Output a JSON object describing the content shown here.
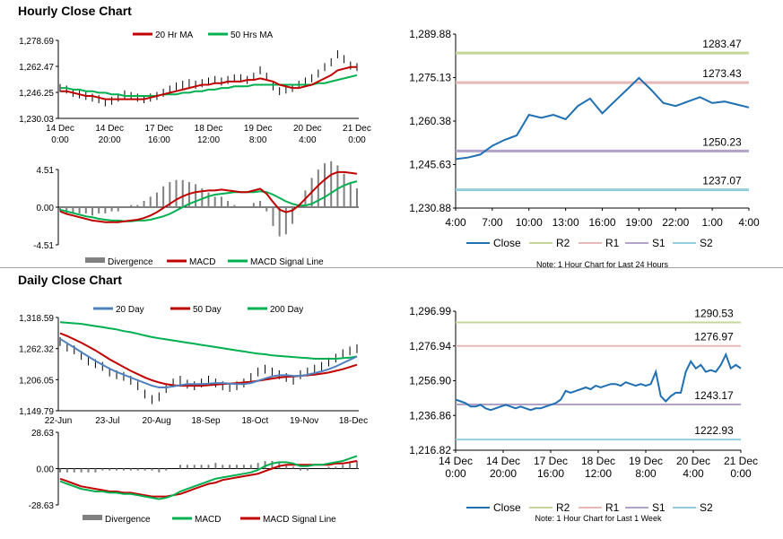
{
  "sections": {
    "hourly_title": "Hourly Close Chart",
    "daily_title": "Daily Close Chart"
  },
  "chart_data": [
    {
      "id": "hourly-price",
      "type": "line",
      "legend": [
        "20 Hr MA",
        "50 Hrs MA"
      ],
      "yticks": [
        "1,278.69",
        "1,262.47",
        "1,246.25",
        "1,230.03"
      ],
      "ylim": [
        1230.03,
        1278.69
      ],
      "xticks": [
        [
          "14 Dec",
          "0:00"
        ],
        [
          "14 Dec",
          "20:00"
        ],
        [
          "17 Dec",
          "16:00"
        ],
        [
          "18 Dec",
          "12:00"
        ],
        [
          "19 Dec",
          "8:00"
        ],
        [
          "20 Dec",
          "4:00"
        ],
        [
          "21 Dec",
          "0:00"
        ]
      ],
      "colors": {
        "ma20": "#c00000",
        "ma50": "#00b050",
        "price": "#000000"
      },
      "close": [
        1249,
        1248,
        1246,
        1245,
        1244,
        1243,
        1242,
        1240,
        1241,
        1243,
        1245,
        1244,
        1243,
        1242,
        1243,
        1244,
        1246,
        1248,
        1250,
        1251,
        1252,
        1251,
        1252,
        1253,
        1254,
        1253,
        1254,
        1255,
        1255,
        1254,
        1256,
        1260,
        1256,
        1250,
        1247,
        1248,
        1249,
        1251,
        1253,
        1255,
        1258,
        1262,
        1265,
        1270,
        1267,
        1263,
        1262
      ],
      "ma20": [
        1247,
        1247,
        1246,
        1245,
        1244,
        1244,
        1243,
        1242,
        1242,
        1242,
        1242,
        1242,
        1242,
        1242,
        1243,
        1244,
        1245,
        1246,
        1247,
        1248,
        1249,
        1250,
        1251,
        1251,
        1252,
        1252,
        1253,
        1253,
        1253,
        1254,
        1254,
        1255,
        1254,
        1253,
        1251,
        1250,
        1249,
        1249,
        1250,
        1251,
        1253,
        1255,
        1257,
        1260,
        1261,
        1262,
        1262
      ],
      "ma50": [
        1249,
        1249,
        1248,
        1248,
        1247,
        1247,
        1246,
        1246,
        1245,
        1245,
        1244,
        1244,
        1244,
        1244,
        1244,
        1244,
        1245,
        1245,
        1245,
        1246,
        1246,
        1247,
        1247,
        1248,
        1248,
        1249,
        1249,
        1250,
        1250,
        1250,
        1251,
        1251,
        1251,
        1251,
        1251,
        1251,
        1251,
        1251,
        1251,
        1251,
        1252,
        1252,
        1253,
        1254,
        1255,
        1256,
        1257
      ]
    },
    {
      "id": "hourly-macd",
      "type": "line",
      "legend": [
        "Divergence",
        "MACD",
        "MACD Signal Line"
      ],
      "yticks": [
        "4.51",
        "0.00",
        "-4.51"
      ],
      "ylim": [
        -4.51,
        4.51
      ],
      "colors": {
        "macd": "#c00000",
        "signal": "#00b050",
        "hist": "#808080"
      },
      "macd": [
        -0.5,
        -0.8,
        -1.0,
        -1.2,
        -1.4,
        -1.6,
        -1.7,
        -1.8,
        -1.8,
        -1.8,
        -1.7,
        -1.6,
        -1.5,
        -1.3,
        -1.0,
        -0.6,
        -0.1,
        0.4,
        0.9,
        1.3,
        1.6,
        1.8,
        1.9,
        2.0,
        2.0,
        2.1,
        2.0,
        1.9,
        1.8,
        1.8,
        2.0,
        2.2,
        1.6,
        0.6,
        -0.3,
        -0.6,
        -0.4,
        0.2,
        1.0,
        1.8,
        2.6,
        3.3,
        3.9,
        4.2,
        4.2,
        4.1,
        4.0
      ],
      "signal": [
        -0.3,
        -0.5,
        -0.7,
        -0.9,
        -1.1,
        -1.2,
        -1.4,
        -1.5,
        -1.6,
        -1.6,
        -1.7,
        -1.7,
        -1.6,
        -1.6,
        -1.5,
        -1.3,
        -1.1,
        -0.8,
        -0.4,
        0.0,
        0.4,
        0.7,
        1.0,
        1.3,
        1.5,
        1.6,
        1.7,
        1.8,
        1.8,
        1.8,
        1.8,
        1.9,
        1.8,
        1.5,
        1.1,
        0.7,
        0.4,
        0.2,
        0.2,
        0.4,
        0.8,
        1.2,
        1.7,
        2.2,
        2.6,
        2.9,
        3.1
      ]
    },
    {
      "id": "hourly-pivot",
      "type": "line",
      "legend": [
        "Close",
        "R2",
        "R1",
        "S1",
        "S2"
      ],
      "note": "Note: 1 Hour Chart for Last 24 Hours",
      "yticks": [
        "1,289.88",
        "1,275.13",
        "1,260.38",
        "1,245.63",
        "1,230.88"
      ],
      "ylim": [
        1230.88,
        1289.88
      ],
      "xticks": [
        "4:00",
        "7:00",
        "10:00",
        "13:00",
        "16:00",
        "19:00",
        "22:00",
        "1:00",
        "4:00"
      ],
      "levels": {
        "R2": 1283.47,
        "R1": 1273.43,
        "S1": 1250.23,
        "S2": 1237.07
      },
      "level_labels": {
        "R2": "1283.47",
        "R1": "1273.43",
        "S1": "1250.23",
        "S2": "1237.07"
      },
      "colors": {
        "close": "#1f6fb2",
        "R2": "#c4d79b",
        "R1": "#e6b9b8",
        "S1": "#b3a2c7",
        "S2": "#93cddd"
      },
      "close": [
        1247.5,
        1248.0,
        1249.0,
        1252.0,
        1254.0,
        1255.5,
        1262.5,
        1261.5,
        1262.5,
        1261.0,
        1265.5,
        1268.0,
        1263.0,
        1267.0,
        1271.0,
        1275.0,
        1271.0,
        1266.5,
        1265.5,
        1267.0,
        1268.5,
        1266.5,
        1267.0,
        1266.0,
        1265.0
      ]
    },
    {
      "id": "daily-price",
      "type": "line",
      "legend": [
        "20 Day",
        "50 Day",
        "200 Day"
      ],
      "yticks": [
        "1,318.59",
        "1,262.32",
        "1,206.05",
        "1,149.79"
      ],
      "ylim": [
        1149.79,
        1318.59
      ],
      "xticks": [
        "22-Jun",
        "23-Jul",
        "20-Aug",
        "18-Sep",
        "18-Oct",
        "19-Nov",
        "18-Dec"
      ],
      "colors": {
        "ma20": "#4f81bd",
        "ma50": "#c00000",
        "ma200": "#00b050",
        "price": "#000000"
      },
      "close": [
        1275,
        1265,
        1260,
        1250,
        1240,
        1235,
        1230,
        1220,
        1215,
        1212,
        1205,
        1195,
        1180,
        1170,
        1175,
        1190,
        1200,
        1205,
        1198,
        1195,
        1200,
        1205,
        1200,
        1195,
        1192,
        1195,
        1200,
        1210,
        1220,
        1225,
        1220,
        1215,
        1210,
        1205,
        1215,
        1220,
        1225,
        1230,
        1238,
        1245,
        1253,
        1258,
        1262
      ],
      "ma20": [
        1280,
        1272,
        1264,
        1256,
        1248,
        1240,
        1233,
        1226,
        1220,
        1215,
        1210,
        1205,
        1200,
        1195,
        1192,
        1192,
        1194,
        1196,
        1198,
        1198,
        1198,
        1199,
        1200,
        1200,
        1199,
        1198,
        1198,
        1200,
        1204,
        1208,
        1212,
        1214,
        1214,
        1213,
        1213,
        1215,
        1218,
        1221,
        1225,
        1230,
        1236,
        1242,
        1248
      ],
      "ma50": [
        1290,
        1285,
        1279,
        1273,
        1266,
        1259,
        1251,
        1243,
        1236,
        1229,
        1222,
        1216,
        1210,
        1205,
        1201,
        1198,
        1196,
        1195,
        1195,
        1195,
        1195,
        1196,
        1197,
        1198,
        1199,
        1200,
        1201,
        1202,
        1204,
        1206,
        1208,
        1210,
        1211,
        1212,
        1213,
        1214,
        1215,
        1217,
        1219,
        1222,
        1225,
        1229,
        1233
      ],
      "ma200": [
        1310,
        1309,
        1308,
        1307,
        1305,
        1303,
        1301,
        1299,
        1297,
        1294,
        1292,
        1289,
        1286,
        1283,
        1281,
        1279,
        1277,
        1275,
        1273,
        1271,
        1269,
        1267,
        1265,
        1263,
        1261,
        1259,
        1257,
        1255,
        1253,
        1252,
        1250,
        1249,
        1248,
        1247,
        1246,
        1245,
        1244,
        1244,
        1244,
        1244,
        1245,
        1246,
        1248
      ]
    },
    {
      "id": "daily-macd",
      "type": "line",
      "legend": [
        "Divergence",
        "MACD",
        "MACD Signal Line"
      ],
      "yticks": [
        "28.63",
        "0.00",
        "-28.63"
      ],
      "ylim": [
        -28.63,
        28.63
      ],
      "colors": {
        "macd": "#00b050",
        "signal": "#c00000",
        "hist": "#808080"
      },
      "macd": [
        -10,
        -12,
        -14,
        -16,
        -17,
        -18,
        -18,
        -19,
        -19,
        -20,
        -20,
        -21,
        -22,
        -23,
        -24,
        -23,
        -21,
        -18,
        -16,
        -14,
        -12,
        -10,
        -8,
        -7,
        -6,
        -5,
        -4,
        -3,
        -1,
        2,
        4,
        5,
        5,
        4,
        2,
        2,
        3,
        3,
        4,
        5,
        6,
        8,
        10
      ],
      "signal": [
        -8,
        -10,
        -12,
        -14,
        -15,
        -16,
        -17,
        -18,
        -18,
        -19,
        -19,
        -20,
        -21,
        -22,
        -22,
        -22,
        -21,
        -20,
        -18,
        -16,
        -14,
        -12,
        -11,
        -9,
        -8,
        -7,
        -6,
        -5,
        -4,
        -2,
        0,
        2,
        3,
        3,
        3,
        3,
        3,
        3,
        3,
        4,
        4,
        5,
        6
      ]
    },
    {
      "id": "daily-pivot",
      "type": "line",
      "legend": [
        "Close",
        "R2",
        "R1",
        "S1",
        "S2"
      ],
      "note": "Note: 1 Hour Chart for Last 1 Week",
      "yticks": [
        "1,296.99",
        "1,276.94",
        "1,256.90",
        "1,236.86",
        "1,216.82"
      ],
      "ylim": [
        1216.82,
        1296.99
      ],
      "xticks": [
        [
          "14 Dec",
          "0:00"
        ],
        [
          "14 Dec",
          "20:00"
        ],
        [
          "17 Dec",
          "16:00"
        ],
        [
          "18 Dec",
          "12:00"
        ],
        [
          "19 Dec",
          "8:00"
        ],
        [
          "20 Dec",
          "4:00"
        ],
        [
          "21 Dec",
          "0:00"
        ]
      ],
      "levels": {
        "R2": 1290.53,
        "R1": 1276.97,
        "S1": 1243.17,
        "S2": 1222.93
      },
      "level_labels": {
        "R2": "1290.53",
        "R1": "1276.97",
        "S1": "1243.17",
        "S2": "1222.93"
      },
      "colors": {
        "close": "#1f6fb2",
        "R2": "#c4d79b",
        "R1": "#e6b9b8",
        "S1": "#b3a2c7",
        "S2": "#93cddd"
      },
      "close": [
        1246,
        1245,
        1244,
        1242,
        1242,
        1243,
        1241,
        1240,
        1241,
        1242,
        1243,
        1242,
        1241,
        1242,
        1241,
        1240,
        1241,
        1241,
        1242,
        1243,
        1244,
        1246,
        1251,
        1250,
        1251,
        1252,
        1253,
        1252,
        1254,
        1253,
        1254,
        1255,
        1255,
        1254,
        1256,
        1255,
        1254,
        1255,
        1254,
        1255,
        1262,
        1248,
        1245,
        1248,
        1250,
        1250,
        1262,
        1268,
        1264,
        1266,
        1262,
        1263,
        1262,
        1266,
        1272,
        1264,
        1266,
        1264
      ]
    }
  ]
}
